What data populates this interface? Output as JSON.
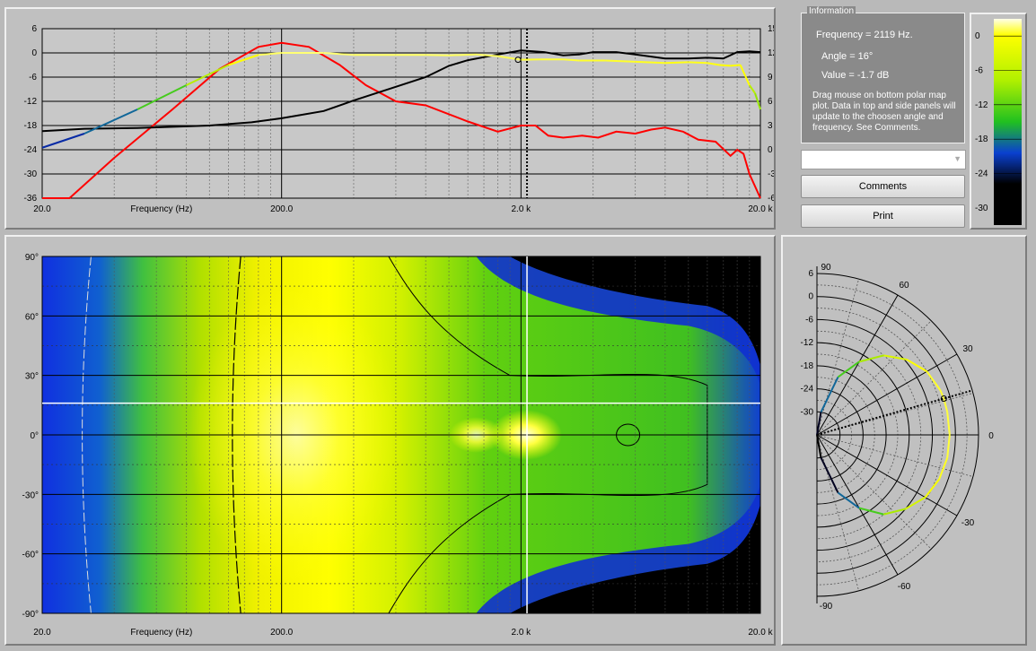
{
  "colors": {
    "red_curve": "#ff0000",
    "black_curve": "#000000",
    "cursor": "#000000",
    "panel_bg": "#c0c0c0"
  },
  "info": {
    "legend": "Information",
    "frequency": "Frequency = 2119 Hz.",
    "angle": "Angle = 16°",
    "value": "Value = -1.7 dB",
    "help": "Drag mouse on bottom polar map plot.  Data in top and side panels will update to the choosen angle and frequency.  See Comments."
  },
  "dropdown": {
    "value": "",
    "icon": "chevron-down-icon"
  },
  "buttons": {
    "comments": "Comments",
    "print": "Print"
  },
  "chart_data": [
    {
      "type": "line",
      "title": "",
      "xlabel": "Frequency (Hz)",
      "x_scale": "log",
      "xlim": [
        20,
        20000
      ],
      "x_ticks": [
        "20.0",
        "200.0",
        "2.0 k",
        "20.0 k"
      ],
      "ylim": [
        -36,
        6
      ],
      "y_ticks": [
        "6",
        "0",
        "-6",
        "-12",
        "-18",
        "-24",
        "-30",
        "-36"
      ],
      "y2lim": [
        -6,
        15
      ],
      "y2_ticks": [
        "15",
        "12",
        "9",
        "6",
        "3",
        "0",
        "-3",
        "-6"
      ],
      "cursor_x": 2119,
      "series": [
        {
          "color": "#ff0000",
          "axis": "left",
          "x": [
            20,
            21,
            26,
            40,
            70,
            110,
            160,
            200,
            260,
            350,
            450,
            600,
            800,
            1200,
            1600,
            2000,
            2300,
            2600,
            3000,
            3600,
            4200,
            5000,
            6000,
            7000,
            8000,
            9500,
            11000,
            13000,
            15000,
            16000,
            17000,
            18000,
            20000
          ],
          "y": [
            -36,
            -36,
            -36,
            -26,
            -14,
            -4,
            1.5,
            2.5,
            1.5,
            -3,
            -8,
            -12,
            -13,
            -17,
            -19.5,
            -18,
            -18,
            -20.5,
            -21,
            -20.5,
            -21,
            -19.5,
            -20,
            -19,
            -18.5,
            -19.5,
            -21.5,
            -22,
            -25.5,
            -24,
            -25,
            -30,
            -36
          ]
        },
        {
          "color": "#000000",
          "axis": "right",
          "x": [
            20,
            30,
            50,
            100,
            150,
            200,
            300,
            400,
            600,
            800,
            1000,
            1200,
            1600,
            2000,
            2500,
            3000,
            3500,
            4000,
            5000,
            6000,
            8000,
            10000,
            12000,
            14000,
            16000,
            18000,
            20000
          ],
          "y": [
            2.3,
            2.6,
            2.7,
            3.0,
            3.4,
            3.9,
            4.8,
            6.1,
            7.8,
            9.0,
            10.4,
            11.1,
            11.8,
            12.3,
            12.1,
            11.7,
            11.8,
            12.1,
            12.1,
            11.8,
            11.3,
            11.3,
            11.4,
            11.3,
            12.1,
            12.2,
            12.1
          ]
        },
        {
          "color": "gradient-by-value",
          "axis": "left",
          "x": [
            20,
            30,
            50,
            80,
            120,
            160,
            200,
            300,
            400,
            600,
            800,
            1000,
            1300,
            1600,
            2000,
            2400,
            3000,
            3500,
            4500,
            6000,
            8000,
            10000,
            12000,
            13500,
            15000,
            16500,
            18000,
            19000,
            20000
          ],
          "y": [
            -23.5,
            -20,
            -14,
            -8,
            -3,
            -0.5,
            0,
            0,
            -0.5,
            -0.5,
            -0.5,
            -0.6,
            -0.4,
            -0.8,
            -1.7,
            -1.6,
            -1.6,
            -1.9,
            -1.9,
            -2.2,
            -2.5,
            -2.3,
            -2.5,
            -3,
            -3.2,
            -3,
            -8,
            -10,
            -14
          ]
        }
      ]
    },
    {
      "type": "heatmap",
      "xlabel": "Frequency (Hz)",
      "x_scale": "log",
      "xlim": [
        20,
        20000
      ],
      "x_ticks": [
        "20.0",
        "200.0",
        "2.0 k",
        "20.0 k"
      ],
      "ylim": [
        -90,
        90
      ],
      "y_ticks": [
        "90°",
        "60°",
        "30°",
        "0°",
        "-30°",
        "-60°",
        "-90°"
      ],
      "cursor": {
        "frequency": 2119,
        "angle": 16
      },
      "colorscale": [
        "black",
        "blue",
        "green",
        "yellow",
        "white"
      ]
    },
    {
      "type": "colorbar",
      "ticks": [
        "0",
        "-6",
        "-12",
        "-18",
        "-24",
        "-30"
      ],
      "range": [
        -33,
        3
      ]
    },
    {
      "type": "polar",
      "angle_labels": [
        "90",
        "60",
        "30",
        "0",
        "-30",
        "-60",
        "-90"
      ],
      "radial_ticks": [
        "6",
        "0",
        "-6",
        "-12",
        "-18",
        "-24",
        "-30"
      ],
      "rlim": [
        -36,
        6
      ],
      "cursor_angle": 16,
      "angles": [
        -90,
        -80,
        -70,
        -60,
        -50,
        -40,
        -30,
        -20,
        -10,
        0,
        10,
        16,
        20,
        30,
        40,
        50,
        60,
        70,
        80,
        90
      ],
      "values": [
        -36,
        -30,
        -20,
        -14,
        -9,
        -6,
        -3.5,
        -2.2,
        -1.6,
        -1.5,
        -1.6,
        -1.7,
        -1.9,
        -3,
        -5.5,
        -9,
        -14,
        -20,
        -30,
        -36
      ]
    }
  ]
}
